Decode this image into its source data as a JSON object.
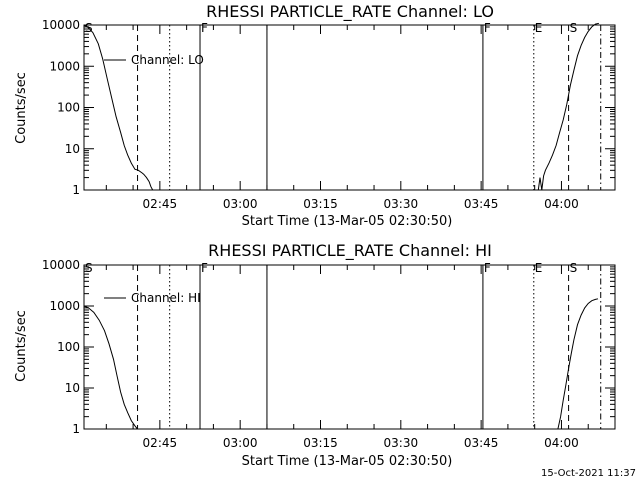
{
  "footer_stamp": "15-Oct-2021 11:37",
  "chart_data": [
    {
      "type": "line",
      "title": "RHESSI PARTICLE_RATE Channel: LO",
      "xlabel": "Start Time (13-Mar-05 02:30:50)",
      "ylabel": "Counts/sec",
      "yscale": "log",
      "ylim": [
        1,
        10000
      ],
      "xlim": [
        "02:30:50",
        "04:10:00"
      ],
      "x_ticks": [
        "02:45",
        "03:00",
        "03:15",
        "03:30",
        "03:45",
        "04:00"
      ],
      "y_ticks": [
        "1",
        "10",
        "100",
        "1000",
        "10000"
      ],
      "legend": [
        "Channel: LO"
      ],
      "legend_position": "top-left",
      "markers": [
        {
          "label": "S",
          "time": "02:30:50",
          "style": "dashed"
        },
        {
          "label": "",
          "time": "02:40:50",
          "style": "dashed"
        },
        {
          "label": "",
          "time": "02:46:50",
          "style": "dotted"
        },
        {
          "label": "F",
          "time": "02:52:30",
          "style": "solid"
        },
        {
          "label": "",
          "time": "03:05:00",
          "style": "solid"
        },
        {
          "label": "F",
          "time": "03:45:20",
          "style": "solid"
        },
        {
          "label": "E",
          "time": "03:54:50",
          "style": "dotted"
        },
        {
          "label": "S",
          "time": "04:01:20",
          "style": "dashed"
        },
        {
          "label": "",
          "time": "04:07:20",
          "style": "dashdot"
        }
      ],
      "series": [
        {
          "name": "Channel: LO",
          "segments": [
            {
              "x": [
                "02:30:50",
                "02:31:30",
                "02:32:30",
                "02:33:30",
                "02:34:20",
                "02:35:10",
                "02:36:00",
                "02:36:50",
                "02:37:40",
                "02:38:20",
                "02:39:00",
                "02:39:40",
                "02:40:20",
                "02:41:00",
                "02:41:40",
                "02:42:00",
                "02:42:30",
                "02:43:00",
                "02:43:20",
                "02:43:40"
              ],
              "y": [
                10000,
                9000,
                6500,
                3500,
                1500,
                500,
                170,
                60,
                25,
                12,
                7,
                4.5,
                3.2,
                3,
                2.6,
                2.4,
                2,
                1.6,
                1.2,
                1
              ]
            },
            {
              "x": [
                "03:55:40",
                "03:56:00",
                "03:56:20",
                "03:56:40",
                "03:57:00",
                "03:57:40",
                "03:58:20",
                "03:59:00",
                "03:59:40",
                "04:00:20",
                "04:01:00",
                "04:01:40",
                "04:02:20",
                "04:03:00",
                "04:03:40",
                "04:04:20",
                "04:05:00",
                "04:05:40",
                "04:06:20",
                "04:07:00"
              ],
              "y": [
                1,
                2,
                1,
                2.2,
                3,
                4.5,
                7,
                12,
                25,
                50,
                120,
                350,
                800,
                1800,
                3200,
                5000,
                7000,
                9000,
                10500,
                11000
              ]
            }
          ]
        }
      ]
    },
    {
      "type": "line",
      "title": "RHESSI PARTICLE_RATE Channel: HI",
      "xlabel": "Start Time (13-Mar-05 02:30:50)",
      "ylabel": "Counts/sec",
      "yscale": "log",
      "ylim": [
        1,
        10000
      ],
      "xlim": [
        "02:30:50",
        "04:10:00"
      ],
      "x_ticks": [
        "02:45",
        "03:00",
        "03:15",
        "03:30",
        "03:45",
        "04:00"
      ],
      "y_ticks": [
        "1",
        "10",
        "100",
        "1000",
        "10000"
      ],
      "legend": [
        "Channel: HI"
      ],
      "legend_position": "top-left",
      "markers": [
        {
          "label": "S",
          "time": "02:30:50",
          "style": "dashed"
        },
        {
          "label": "",
          "time": "02:40:50",
          "style": "dashed"
        },
        {
          "label": "",
          "time": "02:46:50",
          "style": "dotted"
        },
        {
          "label": "F",
          "time": "02:52:30",
          "style": "solid"
        },
        {
          "label": "",
          "time": "03:05:00",
          "style": "solid"
        },
        {
          "label": "F",
          "time": "03:45:20",
          "style": "solid"
        },
        {
          "label": "E",
          "time": "03:54:50",
          "style": "dotted"
        },
        {
          "label": "S",
          "time": "04:01:20",
          "style": "dashed"
        },
        {
          "label": "",
          "time": "04:07:20",
          "style": "dashdot"
        }
      ],
      "series": [
        {
          "name": "Channel: HI",
          "segments": [
            {
              "x": [
                "02:30:50",
                "02:31:40",
                "02:32:40",
                "02:33:40",
                "02:34:40",
                "02:35:30",
                "02:36:20",
                "02:37:00",
                "02:37:40",
                "02:38:20",
                "02:39:00",
                "02:39:40",
                "02:40:20",
                "02:40:50"
              ],
              "y": [
                1000,
                900,
                700,
                450,
                250,
                120,
                50,
                20,
                8,
                4,
                2.5,
                1.6,
                1.2,
                1
              ]
            },
            {
              "x": [
                "03:59:20",
                "03:59:50",
                "04:00:20",
                "04:00:50",
                "04:01:20",
                "04:01:50",
                "04:02:20",
                "04:03:00",
                "04:03:40",
                "04:04:20",
                "04:05:00",
                "04:05:40",
                "04:06:20",
                "04:06:50"
              ],
              "y": [
                1,
                2,
                5,
                12,
                30,
                70,
                150,
                350,
                600,
                900,
                1150,
                1350,
                1450,
                1500
              ]
            }
          ]
        }
      ]
    }
  ]
}
